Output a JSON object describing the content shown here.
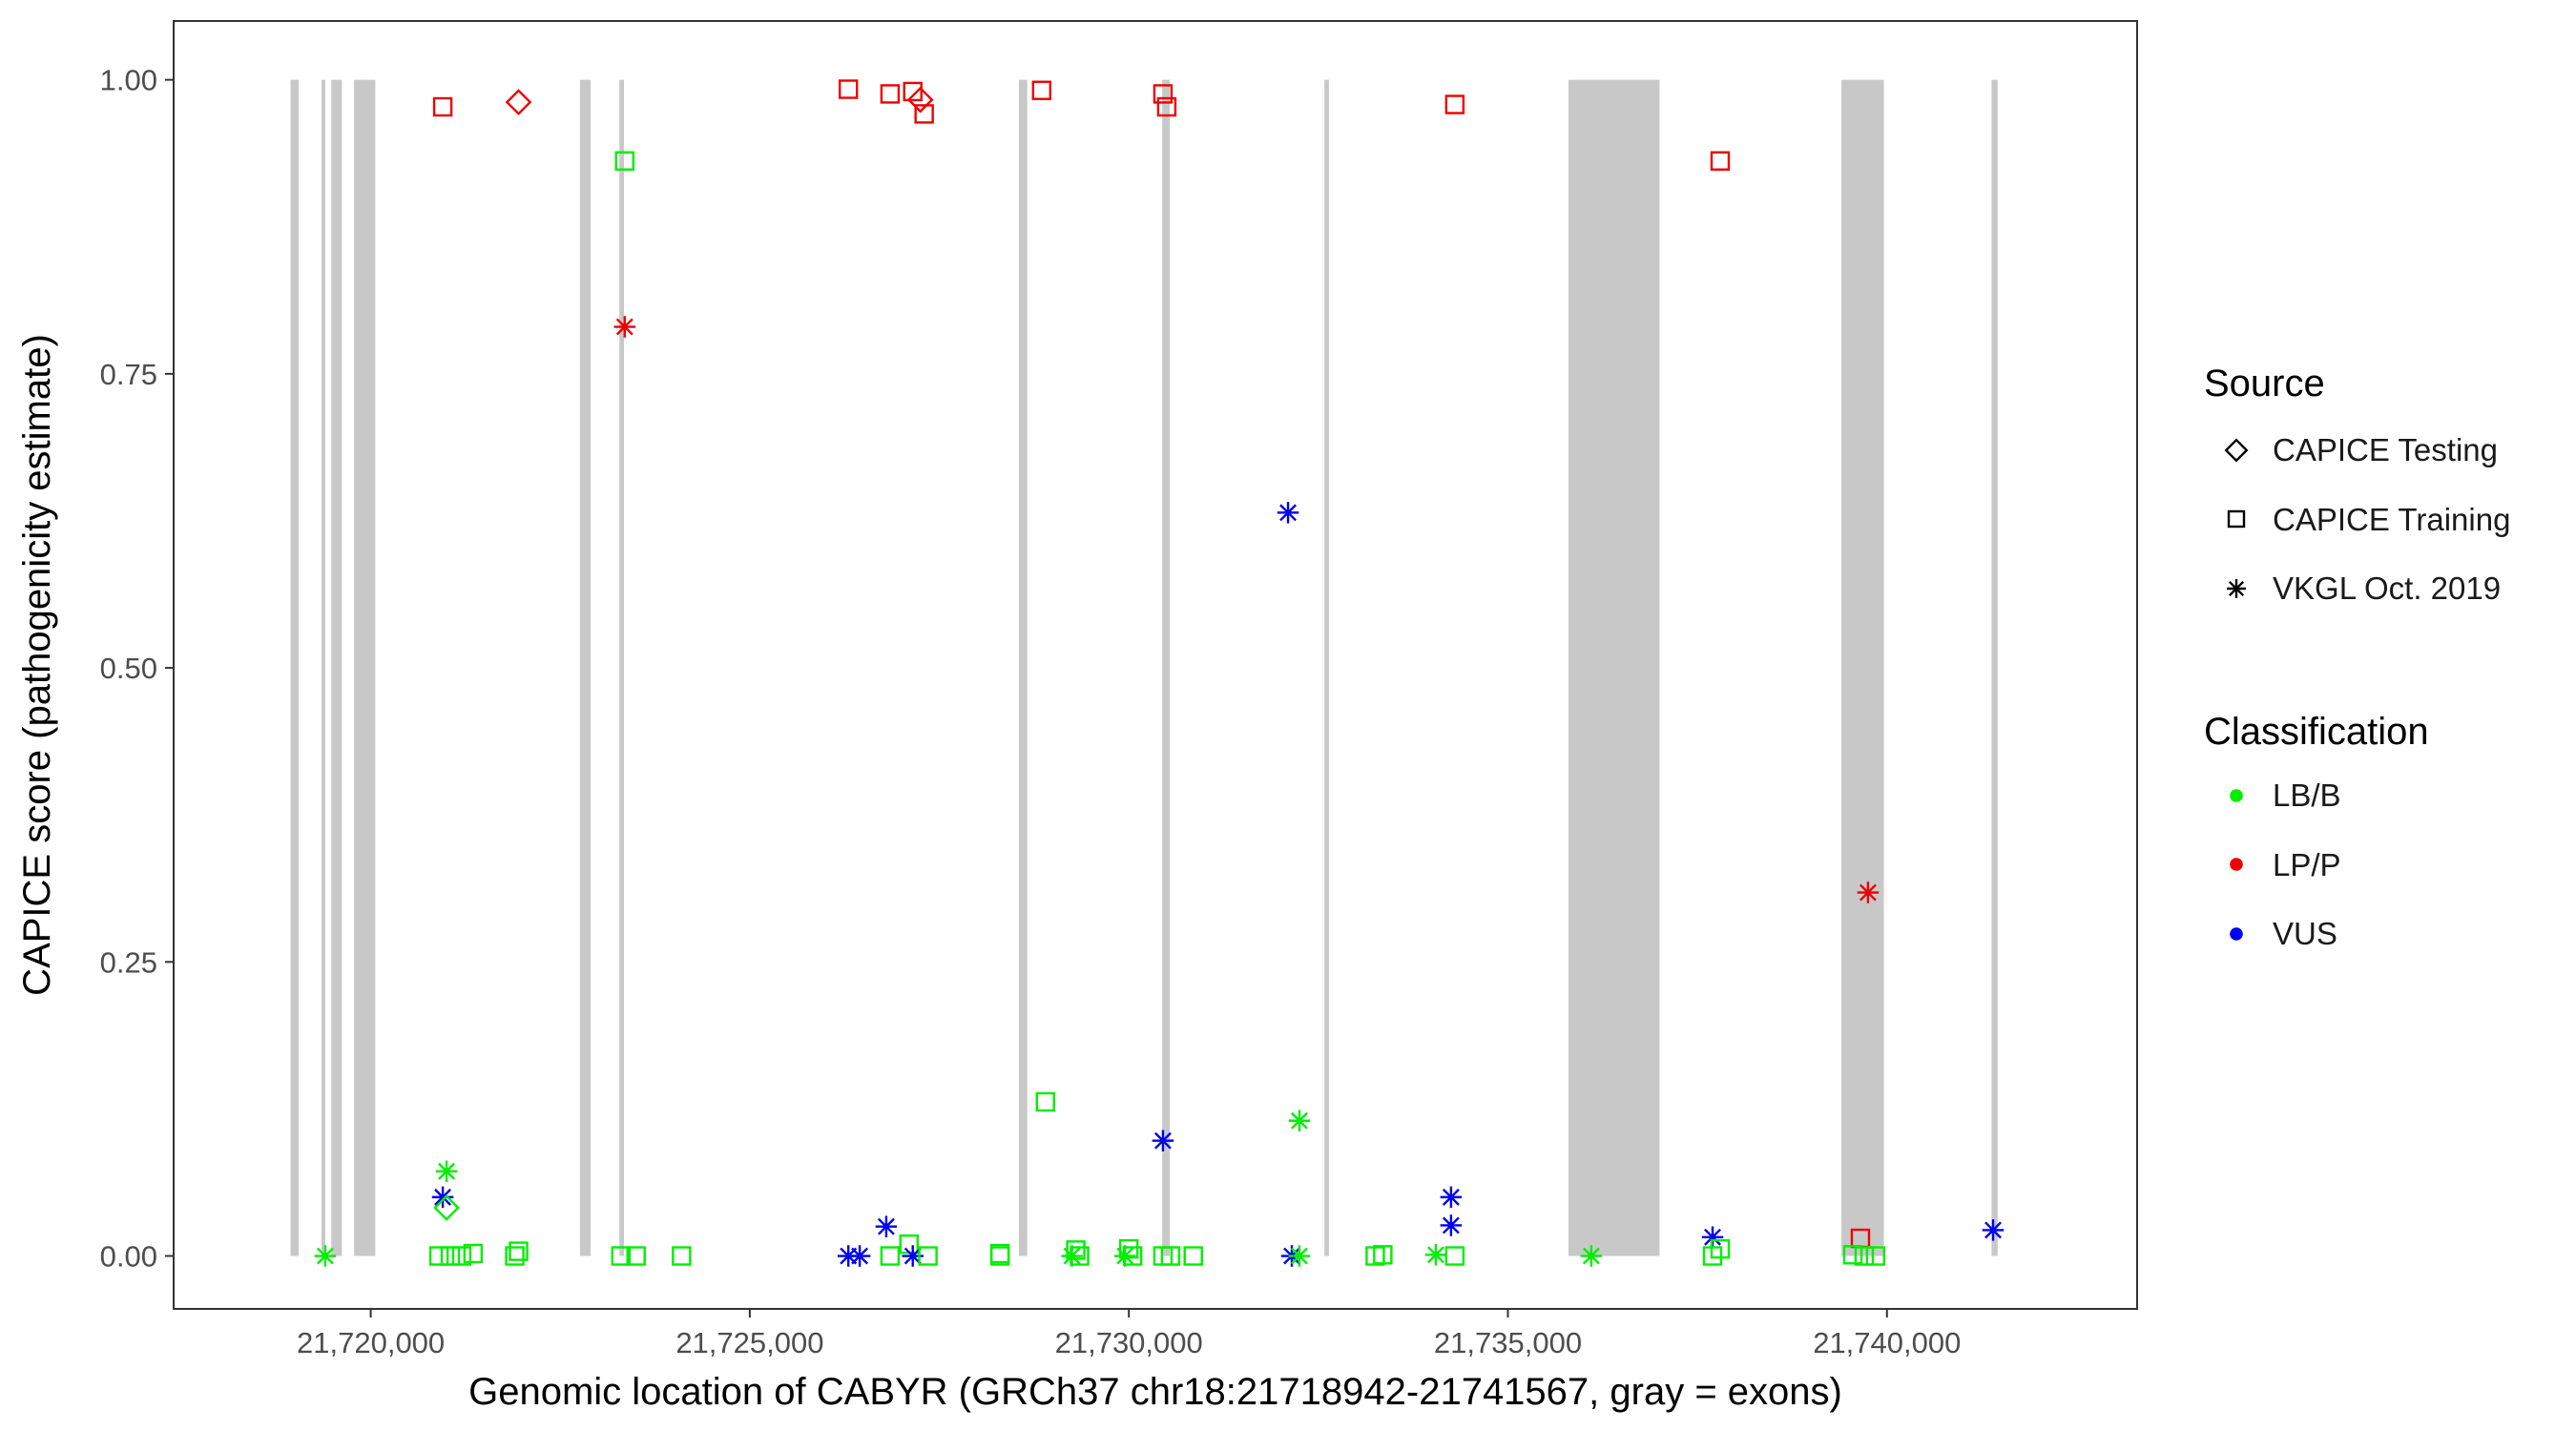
{
  "chart_data": {
    "type": "scatter",
    "xlabel": "Genomic location of CABYR (GRCh37 chr18:21718942-21741567, gray = exons)",
    "ylabel": "CAPICE score (pathogenicity estimate)",
    "xlim": [
      21717400,
      21743300
    ],
    "ylim": [
      -0.045,
      1.05
    ],
    "x_ticks": [
      21720000,
      21725000,
      21730000,
      21735000,
      21740000
    ],
    "x_tick_labels": [
      "21,720,000",
      "21,725,000",
      "21,730,000",
      "21,735,000",
      "21,740,000"
    ],
    "y_ticks": [
      0,
      0.25,
      0.5,
      0.75,
      1
    ],
    "y_tick_labels": [
      "0.00",
      "0.25",
      "0.50",
      "0.75",
      "1.00"
    ],
    "grid": false,
    "legend_placement": "right",
    "exons": [
      [
        21718942,
        21719050
      ],
      [
        21719350,
        21719380
      ],
      [
        21719480,
        21719620
      ],
      [
        21719780,
        21720060
      ],
      [
        21722760,
        21722900
      ],
      [
        21723280,
        21723340
      ],
      [
        21728550,
        21728660
      ],
      [
        21730440,
        21730540
      ],
      [
        21732580,
        21732640
      ],
      [
        21735800,
        21737000
      ],
      [
        21739400,
        21739960
      ],
      [
        21741380,
        21741460
      ]
    ],
    "legend": {
      "source": {
        "title": "Source",
        "items": [
          {
            "label": "CAPICE Testing",
            "shape": "diamond"
          },
          {
            "label": "CAPICE Training",
            "shape": "square"
          },
          {
            "label": "VKGL Oct. 2019",
            "shape": "asterisk"
          }
        ]
      },
      "classification": {
        "title": "Classification",
        "items": [
          {
            "label": "LB/B",
            "color": "#00ee00"
          },
          {
            "label": "LP/P",
            "color": "#ee0000"
          },
          {
            "label": "VUS",
            "color": "#0000ee"
          }
        ]
      }
    },
    "colors": {
      "LB/B": "#00ee00",
      "LP/P": "#ee0000",
      "VUS": "#0000ee",
      "exon": "#c8c8c8"
    },
    "points": [
      {
        "x": 21720950,
        "y": 0.977,
        "shape": "square",
        "cls": "LP/P"
      },
      {
        "x": 21721950,
        "y": 0.981,
        "shape": "diamond",
        "cls": "LP/P"
      },
      {
        "x": 21726300,
        "y": 0.992,
        "shape": "square",
        "cls": "LP/P"
      },
      {
        "x": 21726850,
        "y": 0.988,
        "shape": "square",
        "cls": "LP/P"
      },
      {
        "x": 21727150,
        "y": 0.99,
        "shape": "square",
        "cls": "LP/P"
      },
      {
        "x": 21727250,
        "y": 0.983,
        "shape": "diamond",
        "cls": "LP/P"
      },
      {
        "x": 21727300,
        "y": 0.971,
        "shape": "square",
        "cls": "LP/P"
      },
      {
        "x": 21728850,
        "y": 0.991,
        "shape": "square",
        "cls": "LP/P"
      },
      {
        "x": 21730450,
        "y": 0.988,
        "shape": "square",
        "cls": "LP/P"
      },
      {
        "x": 21730500,
        "y": 0.977,
        "shape": "square",
        "cls": "LP/P"
      },
      {
        "x": 21734300,
        "y": 0.979,
        "shape": "square",
        "cls": "LP/P"
      },
      {
        "x": 21737800,
        "y": 0.931,
        "shape": "square",
        "cls": "LP/P"
      },
      {
        "x": 21723350,
        "y": 0.931,
        "shape": "square",
        "cls": "LB/B"
      },
      {
        "x": 21723350,
        "y": 0.79,
        "shape": "asterisk",
        "cls": "LP/P"
      },
      {
        "x": 21732100,
        "y": 0.632,
        "shape": "asterisk",
        "cls": "VUS"
      },
      {
        "x": 21739750,
        "y": 0.309,
        "shape": "asterisk",
        "cls": "LP/P"
      },
      {
        "x": 21728900,
        "y": 0.131,
        "shape": "square",
        "cls": "LB/B"
      },
      {
        "x": 21732250,
        "y": 0.115,
        "shape": "asterisk",
        "cls": "LB/B"
      },
      {
        "x": 21730450,
        "y": 0.098,
        "shape": "asterisk",
        "cls": "VUS"
      },
      {
        "x": 21721000,
        "y": 0.072,
        "shape": "asterisk",
        "cls": "LB/B"
      },
      {
        "x": 21720950,
        "y": 0.05,
        "shape": "asterisk",
        "cls": "VUS"
      },
      {
        "x": 21721000,
        "y": 0.041,
        "shape": "diamond",
        "cls": "LB/B"
      },
      {
        "x": 21734250,
        "y": 0.05,
        "shape": "asterisk",
        "cls": "VUS"
      },
      {
        "x": 21734250,
        "y": 0.026,
        "shape": "asterisk",
        "cls": "VUS"
      },
      {
        "x": 21726800,
        "y": 0.025,
        "shape": "asterisk",
        "cls": "VUS"
      },
      {
        "x": 21741400,
        "y": 0.022,
        "shape": "asterisk",
        "cls": "VUS"
      },
      {
        "x": 21737700,
        "y": 0.016,
        "shape": "asterisk",
        "cls": "VUS"
      },
      {
        "x": 21739650,
        "y": 0.015,
        "shape": "square",
        "cls": "LP/P"
      },
      {
        "x": 21727100,
        "y": 0.01,
        "shape": "square",
        "cls": "LB/B"
      },
      {
        "x": 21729300,
        "y": 0.005,
        "shape": "square",
        "cls": "LB/B"
      },
      {
        "x": 21730000,
        "y": 0.006,
        "shape": "square",
        "cls": "LB/B"
      },
      {
        "x": 21737800,
        "y": 0.006,
        "shape": "square",
        "cls": "LB/B"
      },
      {
        "x": 21721950,
        "y": 0.004,
        "shape": "square",
        "cls": "LB/B"
      },
      {
        "x": 21719400,
        "y": 0.0,
        "shape": "asterisk",
        "cls": "LB/B"
      },
      {
        "x": 21720900,
        "y": 0.0,
        "shape": "square",
        "cls": "LB/B"
      },
      {
        "x": 21721050,
        "y": 0.0,
        "shape": "square",
        "cls": "LB/B"
      },
      {
        "x": 21721200,
        "y": 0.0,
        "shape": "square",
        "cls": "LB/B"
      },
      {
        "x": 21721350,
        "y": 0.002,
        "shape": "square",
        "cls": "LB/B"
      },
      {
        "x": 21721900,
        "y": 0.0,
        "shape": "square",
        "cls": "LB/B"
      },
      {
        "x": 21723300,
        "y": 0.0,
        "shape": "square",
        "cls": "LB/B"
      },
      {
        "x": 21723500,
        "y": 0.0,
        "shape": "square",
        "cls": "LB/B"
      },
      {
        "x": 21724100,
        "y": 0.0,
        "shape": "square",
        "cls": "LB/B"
      },
      {
        "x": 21726300,
        "y": 0.0,
        "shape": "asterisk",
        "cls": "VUS"
      },
      {
        "x": 21726450,
        "y": 0.0,
        "shape": "asterisk",
        "cls": "VUS"
      },
      {
        "x": 21726850,
        "y": 0.0,
        "shape": "square",
        "cls": "LB/B"
      },
      {
        "x": 21727150,
        "y": 0.0,
        "shape": "asterisk",
        "cls": "VUS"
      },
      {
        "x": 21727350,
        "y": 0.0,
        "shape": "square",
        "cls": "LB/B"
      },
      {
        "x": 21728300,
        "y": 0.0,
        "shape": "square",
        "cls": "LB/B"
      },
      {
        "x": 21728300,
        "y": 0.002,
        "shape": "square",
        "cls": "LB/B"
      },
      {
        "x": 21729250,
        "y": 0.0,
        "shape": "asterisk",
        "cls": "LB/B"
      },
      {
        "x": 21729350,
        "y": 0.0,
        "shape": "square",
        "cls": "LB/B"
      },
      {
        "x": 21729950,
        "y": 0.0,
        "shape": "asterisk",
        "cls": "LB/B"
      },
      {
        "x": 21730050,
        "y": 0.0,
        "shape": "square",
        "cls": "LB/B"
      },
      {
        "x": 21730450,
        "y": 0.0,
        "shape": "square",
        "cls": "LB/B"
      },
      {
        "x": 21730550,
        "y": 0.0,
        "shape": "square",
        "cls": "LB/B"
      },
      {
        "x": 21730850,
        "y": 0.0,
        "shape": "square",
        "cls": "LB/B"
      },
      {
        "x": 21732150,
        "y": 0.0,
        "shape": "asterisk",
        "cls": "VUS"
      },
      {
        "x": 21732250,
        "y": 0.0,
        "shape": "asterisk",
        "cls": "LB/B"
      },
      {
        "x": 21733250,
        "y": 0.0,
        "shape": "square",
        "cls": "LB/B"
      },
      {
        "x": 21733350,
        "y": 0.001,
        "shape": "square",
        "cls": "LB/B"
      },
      {
        "x": 21734050,
        "y": 0.001,
        "shape": "asterisk",
        "cls": "LB/B"
      },
      {
        "x": 21734300,
        "y": 0.0,
        "shape": "square",
        "cls": "LB/B"
      },
      {
        "x": 21736100,
        "y": 0.0,
        "shape": "asterisk",
        "cls": "LB/B"
      },
      {
        "x": 21737700,
        "y": 0.0,
        "shape": "square",
        "cls": "LB/B"
      },
      {
        "x": 21739550,
        "y": 0.001,
        "shape": "square",
        "cls": "LB/B"
      },
      {
        "x": 21739700,
        "y": 0.0,
        "shape": "square",
        "cls": "LB/B"
      },
      {
        "x": 21739850,
        "y": 0.0,
        "shape": "square",
        "cls": "LB/B"
      }
    ]
  }
}
